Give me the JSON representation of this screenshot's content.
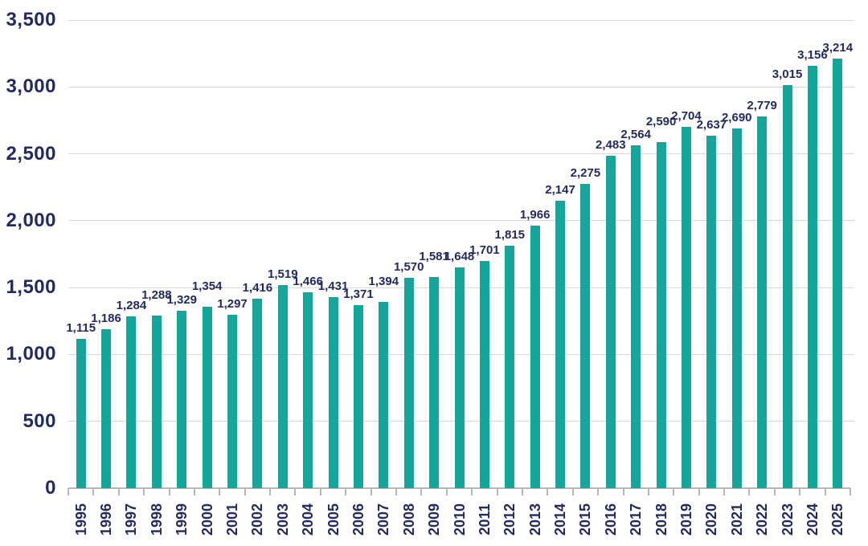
{
  "chart_data": {
    "type": "bar",
    "title": "",
    "xlabel": "",
    "ylabel": "",
    "categories": [
      "1995",
      "1996",
      "1997",
      "1998",
      "1999",
      "2000",
      "2001",
      "2002",
      "2003",
      "2004",
      "2005",
      "2006",
      "2007",
      "2008",
      "2009",
      "2010",
      "2011",
      "2012",
      "2013",
      "2014",
      "2015",
      "2016",
      "2017",
      "2018",
      "2019",
      "2020",
      "2021",
      "2022",
      "2023",
      "2024",
      "2025"
    ],
    "values": [
      1115,
      1186,
      1284,
      1288,
      1329,
      1354,
      1297,
      1416,
      1519,
      1466,
      1431,
      1371,
      1394,
      1570,
      1581,
      1648,
      1701,
      1815,
      1966,
      2147,
      2275,
      2483,
      2564,
      2590,
      2704,
      2637,
      2690,
      2779,
      3015,
      3156,
      3214
    ],
    "ylim": [
      0,
      3500
    ],
    "y_tick_step": 500,
    "grid": true,
    "legend": false,
    "data_labels": true,
    "colors": {
      "bar": "#14a69b",
      "text": "#232a5e",
      "gridline": "#d9d9d9",
      "axis": "#b7b7b7"
    }
  }
}
